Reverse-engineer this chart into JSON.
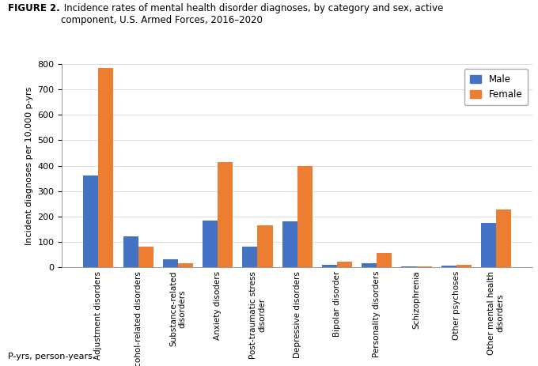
{
  "title_bold": "FIGURE 2.",
  "title_regular": " Incidence rates of mental health disorder diagnoses, by category and sex, active\ncomponent, U.S. Armed Forces, 2016–2020",
  "categories": [
    "Adjustment disorders",
    "Alcohol-related disorders",
    "Substance-related\ndisorders",
    "Anxiety disoders",
    "Post-traumatic stress\ndisorder",
    "Depressive disorders",
    "Bipolar disorder",
    "Personality disorders",
    "Schizophrenia",
    "Other psychoses",
    "Other mental health\ndisorders"
  ],
  "male_values": [
    360,
    120,
    30,
    185,
    80,
    180,
    10,
    17,
    2,
    5,
    175
  ],
  "female_values": [
    785,
    80,
    15,
    415,
    165,
    400,
    22,
    55,
    2,
    8,
    228
  ],
  "male_color": "#4472C4",
  "female_color": "#ED7D31",
  "ylabel": "Incident diagnoses per 10,000 p-yrs",
  "ylim": [
    0,
    800
  ],
  "yticks": [
    0,
    100,
    200,
    300,
    400,
    500,
    600,
    700,
    800
  ],
  "legend_labels": [
    "Male",
    "Female"
  ],
  "footnote": "P-yrs, person-years.",
  "bar_width": 0.38,
  "background_color": "#ffffff",
  "title_fontsize": 8.5,
  "tick_fontsize": 7.5,
  "ylabel_fontsize": 8.0,
  "footnote_fontsize": 8.0
}
